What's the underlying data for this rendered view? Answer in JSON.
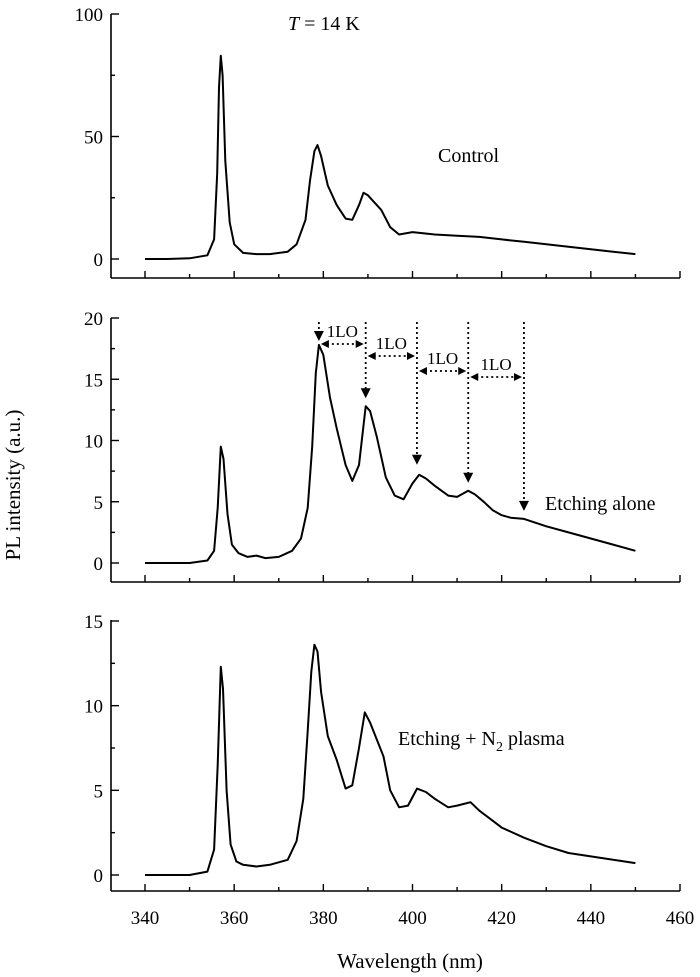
{
  "chart_data": [
    {
      "type": "line",
      "title": "",
      "annotation": "T = 14 K",
      "series_label": "Control",
      "xlabel": "",
      "ylabel": "",
      "xlim": [
        330,
        460
      ],
      "ylim": [
        -5,
        100
      ],
      "yticks": [
        0,
        50,
        100
      ],
      "xticks": [
        340,
        360,
        380,
        400,
        420,
        440,
        460
      ],
      "series": [
        {
          "x": [
            340,
            345,
            350,
            354,
            355.5,
            356.2,
            356.6,
            357,
            357.4,
            358,
            359,
            360,
            362,
            365,
            368,
            372,
            374,
            376,
            377,
            378,
            378.7,
            379.5,
            381,
            383,
            385,
            386.5,
            388,
            389,
            390,
            391.5,
            393,
            395,
            397,
            400,
            405,
            410,
            415,
            420,
            425,
            430,
            435,
            440,
            445,
            450
          ],
          "y": [
            0,
            0,
            0.3,
            1.5,
            8,
            35,
            70,
            83,
            75,
            40,
            15,
            6,
            2.5,
            2,
            2,
            3,
            6,
            16,
            32,
            44,
            46.5,
            42,
            30,
            22,
            16.5,
            16,
            22,
            27,
            26,
            23,
            20,
            13,
            10,
            11,
            10,
            9.5,
            9,
            8,
            7,
            6,
            5,
            4,
            3,
            2
          ]
        }
      ]
    },
    {
      "type": "line",
      "title": "",
      "series_label": "Etching alone",
      "xlabel": "",
      "ylabel": "PL intensity (a.u.)",
      "xlim": [
        330,
        460
      ],
      "ylim": [
        -1,
        20
      ],
      "yticks": [
        0,
        5,
        10,
        15,
        20
      ],
      "xticks": [
        340,
        360,
        380,
        400,
        420,
        440,
        460
      ],
      "phonon_label": "1LO",
      "arrow_positions_nm": [
        379,
        389.5,
        401,
        412.5,
        425
      ],
      "series": [
        {
          "x": [
            340,
            350,
            354,
            355.5,
            356.3,
            357,
            357.6,
            358.5,
            359.5,
            361,
            363,
            365,
            367,
            370,
            373,
            375,
            376.5,
            377.5,
            378.3,
            379,
            380,
            381.5,
            383,
            385,
            386.5,
            388,
            389.5,
            390.5,
            392,
            394,
            396,
            398,
            400,
            401.5,
            403,
            405,
            408,
            410,
            412.5,
            414,
            416,
            418,
            420,
            422,
            425,
            430,
            435,
            440,
            445,
            450
          ],
          "y": [
            0,
            0,
            0.2,
            1,
            4.5,
            9.5,
            8.5,
            4,
            1.5,
            0.8,
            0.5,
            0.6,
            0.4,
            0.5,
            1,
            2,
            4.5,
            9.5,
            15.5,
            17.8,
            17,
            13.5,
            11,
            8,
            6.7,
            8,
            12.8,
            12.4,
            10.3,
            7,
            5.5,
            5.2,
            6.5,
            7.2,
            6.9,
            6.3,
            5.5,
            5.4,
            5.9,
            5.6,
            5.0,
            4.3,
            3.9,
            3.7,
            3.6,
            3.0,
            2.5,
            2.0,
            1.5,
            1.0
          ]
        }
      ]
    },
    {
      "type": "line",
      "title": "",
      "series_label_prefix": "Etching + N",
      "series_label_sub": "2",
      "series_label_suffix": " plasma",
      "xlabel": "Wavelength (nm)",
      "ylabel": "",
      "xlim": [
        330,
        460
      ],
      "ylim": [
        -1,
        15
      ],
      "yticks": [
        0,
        5,
        10,
        15
      ],
      "xticks": [
        340,
        360,
        380,
        400,
        420,
        440,
        460
      ],
      "series": [
        {
          "x": [
            340,
            350,
            354,
            355.5,
            356.3,
            357,
            357.5,
            358.3,
            359.2,
            360.5,
            362,
            365,
            368,
            372,
            374,
            375.5,
            376.5,
            377.3,
            378,
            378.7,
            379.5,
            381,
            383,
            385,
            386.5,
            388,
            389.3,
            390.5,
            392,
            393.5,
            395,
            397,
            399,
            401,
            403,
            405,
            408,
            410,
            413,
            415,
            418,
            420,
            425,
            430,
            435,
            440,
            445,
            450
          ],
          "y": [
            0,
            0,
            0.2,
            1.5,
            6.5,
            12.3,
            11,
            5,
            1.8,
            0.8,
            0.6,
            0.5,
            0.6,
            0.9,
            2,
            4.5,
            8.5,
            12,
            13.6,
            13.2,
            10.8,
            8.2,
            6.8,
            5.1,
            5.3,
            7.5,
            9.6,
            9.0,
            8.0,
            7,
            5,
            4,
            4.1,
            5.1,
            4.9,
            4.5,
            4.0,
            4.1,
            4.3,
            3.8,
            3.2,
            2.8,
            2.2,
            1.7,
            1.3,
            1.1,
            0.9,
            0.7
          ]
        }
      ]
    }
  ]
}
